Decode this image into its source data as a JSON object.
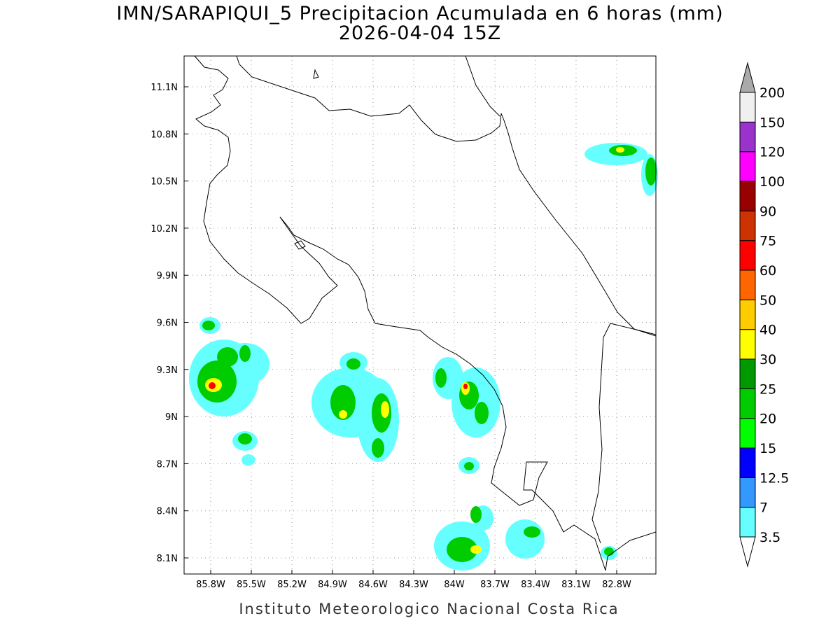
{
  "title": "IMN/SARAPIQUI_5 Precipitacion Acumulada en 6 horas (mm)",
  "subtitle": "2026-04-04 15Z",
  "map": {
    "lon_labels": [
      "85.8W",
      "85.5W",
      "85.2W",
      "84.9W",
      "84.6W",
      "84.3W",
      "84W",
      "83.7W",
      "83.4W",
      "83.1W",
      "82.8W"
    ],
    "lat_labels": [
      "11.1N",
      "10.8N",
      "10.5N",
      "10.2N",
      "9.9N",
      "9.6N",
      "9.3N",
      "9N",
      "8.7N",
      "8.4N",
      "8.1N"
    ]
  },
  "colorbar": {
    "levels": [
      3.5,
      7,
      12.5,
      15,
      20,
      25,
      30,
      40,
      50,
      60,
      75,
      90,
      100,
      120,
      150,
      200
    ],
    "colors": [
      "#66ffff",
      "#3399ff",
      "#0000ff",
      "#00ff00",
      "#00cc00",
      "#009900",
      "#ffff00",
      "#ffcc00",
      "#ff6600",
      "#ff0000",
      "#cc3300",
      "#990000",
      "#ff00ff",
      "#9933cc",
      "#f0f0f0"
    ],
    "below_color": "#ffffff",
    "above_color": "#aaaaaa"
  },
  "footer": "Instituto Meteorologico Nacional Costa Rica"
}
